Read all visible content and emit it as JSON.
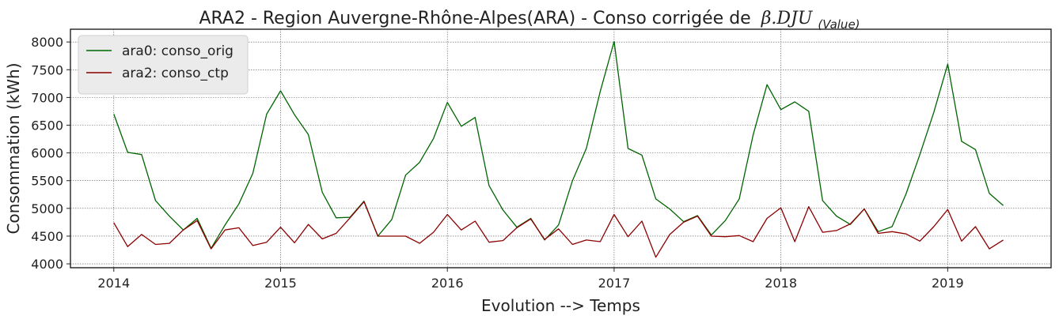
{
  "chart_data": {
    "type": "line",
    "title": "ARA2 - Region Auvergne-Rhône-Alpes(ARA) - Conso corrigée de",
    "title_math": "β.DJU",
    "title_math_sub": "(Value)",
    "xlabel": "Evolution --> Temps",
    "ylabel": "Consommation (kWh)",
    "xlim": [
      2013.74,
      2019.62
    ],
    "ylim": [
      3930,
      8230
    ],
    "x_ticks": [
      2014,
      2015,
      2016,
      2017,
      2018,
      2019
    ],
    "x_tick_labels": [
      "2014",
      "2015",
      "2016",
      "2017",
      "2018",
      "2019"
    ],
    "y_ticks": [
      4000,
      4500,
      5000,
      5500,
      6000,
      6500,
      7000,
      7500,
      8000
    ],
    "y_tick_labels": [
      "4000",
      "4500",
      "5000",
      "5500",
      "6000",
      "6500",
      "7000",
      "7500",
      "8000"
    ],
    "grid": true,
    "legend_position": "top-left",
    "x_start": "2014-01",
    "x_step": "month",
    "series": [
      {
        "name": "ara0: conso_orig",
        "color": "#006400",
        "values": [
          6700,
          6010,
          5970,
          5140,
          4860,
          4610,
          4820,
          4280,
          4700,
          5080,
          5630,
          6700,
          7120,
          6690,
          6330,
          5290,
          4830,
          4840,
          5130,
          4500,
          4800,
          5600,
          5830,
          6260,
          6910,
          6480,
          6640,
          5410,
          4970,
          4660,
          4820,
          4430,
          4700,
          5500,
          6080,
          7110,
          8010,
          6080,
          5960,
          5170,
          4990,
          4760,
          4870,
          4520,
          4780,
          5170,
          6320,
          7230,
          6780,
          6920,
          6750,
          5140,
          4860,
          4710,
          4990,
          4580,
          4670,
          5260,
          5970,
          6730,
          7600,
          6210,
          6060,
          5270,
          5050
        ]
      },
      {
        "name": "ara2: conso_ctp",
        "color": "#8b0000",
        "values": [
          4740,
          4310,
          4530,
          4350,
          4370,
          4610,
          4780,
          4270,
          4610,
          4650,
          4330,
          4390,
          4660,
          4380,
          4710,
          4450,
          4550,
          4830,
          5120,
          4500,
          4500,
          4500,
          4370,
          4570,
          4890,
          4610,
          4770,
          4390,
          4420,
          4650,
          4810,
          4440,
          4630,
          4350,
          4430,
          4400,
          4890,
          4490,
          4770,
          4120,
          4530,
          4750,
          4860,
          4500,
          4490,
          4510,
          4400,
          4820,
          5010,
          4400,
          5030,
          4570,
          4600,
          4720,
          4990,
          4550,
          4580,
          4540,
          4410,
          4670,
          4980,
          4410,
          4670,
          4270,
          4430
        ]
      }
    ]
  }
}
